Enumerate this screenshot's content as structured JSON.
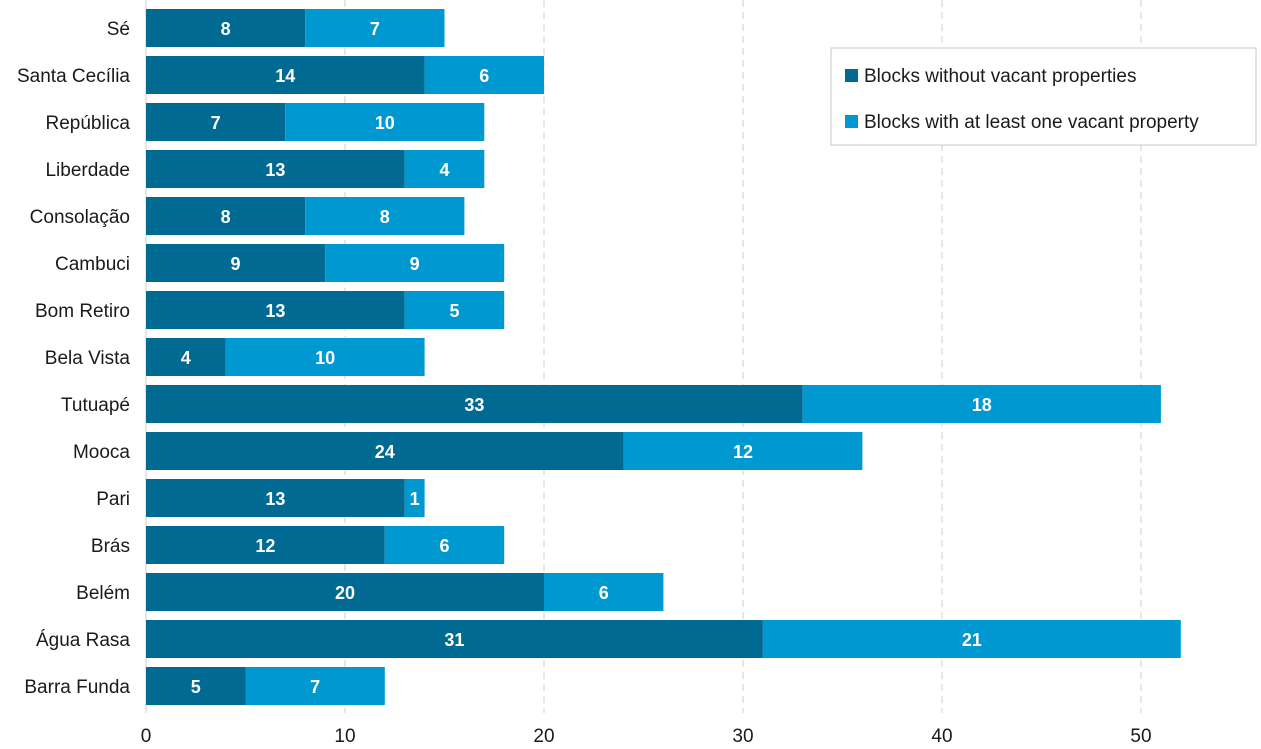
{
  "chart_data": {
    "type": "bar",
    "orientation": "horizontal",
    "stacked": true,
    "categories": [
      "Sé",
      "Santa Cecília",
      "República",
      "Liberdade",
      "Consolação",
      "Cambuci",
      "Bom Retiro",
      "Bela Vista",
      "Tutuapé",
      "Mooca",
      "Pari",
      "Brás",
      "Belém",
      "Água Rasa",
      "Barra Funda"
    ],
    "series": [
      {
        "name": "Blocks without vacant properties",
        "color": "#006a93",
        "values": [
          8,
          14,
          7,
          13,
          8,
          9,
          13,
          4,
          33,
          24,
          13,
          12,
          20,
          31,
          5
        ]
      },
      {
        "name": "Blocks with at least one vacant property",
        "color": "#0098d0",
        "values": [
          7,
          6,
          10,
          4,
          8,
          9,
          5,
          10,
          18,
          12,
          1,
          6,
          6,
          21,
          7
        ]
      }
    ],
    "xlim": [
      0,
      55
    ],
    "xticks": [
      0,
      10,
      20,
      30,
      40,
      50
    ],
    "grid": "vertical-dashed",
    "legend_position": "top-right",
    "title": "",
    "xlabel": "",
    "ylabel": ""
  }
}
